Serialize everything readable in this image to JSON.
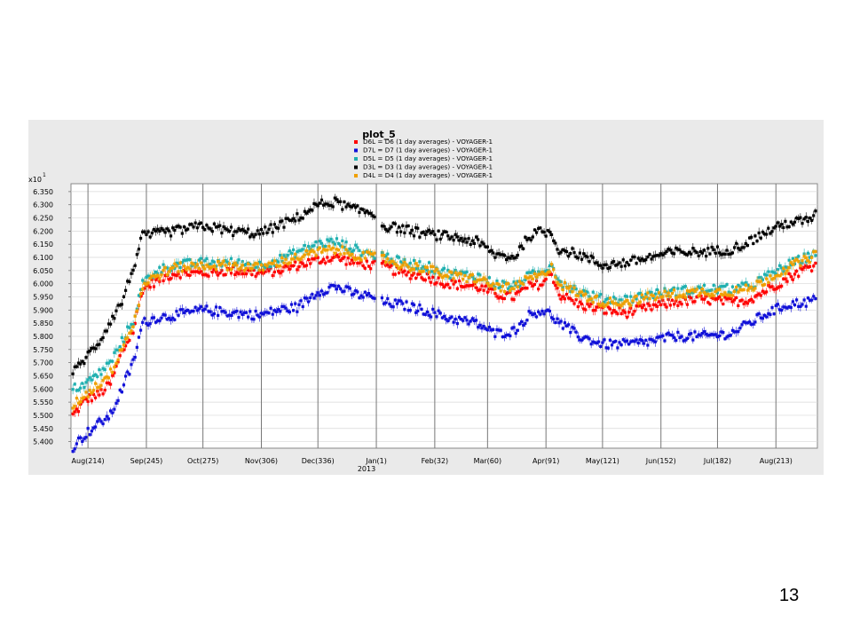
{
  "page_number": "13",
  "chart_data": {
    "type": "scatter",
    "title": "plot_5",
    "y_multiplier_label": "x10",
    "y_multiplier_exp": "1",
    "y_tick_labels": [
      "5.400",
      "5.450",
      "5.500",
      "5.550",
      "5.600",
      "5.650",
      "5.700",
      "5.750",
      "5.800",
      "5.850",
      "5.900",
      "5.950",
      "6.000",
      "6.050",
      "6.100",
      "6.150",
      "6.200",
      "6.250",
      "6.300",
      "6.350"
    ],
    "ylim": [
      5.375,
      6.38
    ],
    "xlim": [
      205,
      601
    ],
    "x_unit": "day of year (2012 continuing into 2013, day 366 = Jan 1 2013)",
    "x_ticks": [
      {
        "x": 214,
        "label": "Aug(214)"
      },
      {
        "x": 245,
        "label": "Sep(245)"
      },
      {
        "x": 275,
        "label": "Oct(275)"
      },
      {
        "x": 306,
        "label": "Nov(306)"
      },
      {
        "x": 336,
        "label": "Dec(336)"
      },
      {
        "x": 367,
        "label": "Jan(1)"
      },
      {
        "x": 398,
        "label": "Feb(32)"
      },
      {
        "x": 426,
        "label": "Mar(60)"
      },
      {
        "x": 457,
        "label": "Apr(91)"
      },
      {
        "x": 487,
        "label": "May(121)"
      },
      {
        "x": 518,
        "label": "Jun(152)"
      },
      {
        "x": 548,
        "label": "Jul(182)"
      },
      {
        "x": 579,
        "label": "Aug(213)"
      }
    ],
    "year_label": "2013",
    "grid": true,
    "legend_position": "top",
    "series": [
      {
        "name": "D6L = D6 (1 day averages) - VOYAGER-1",
        "color": "#ff0000",
        "knots": [
          [
            206,
            5.5
          ],
          [
            213,
            5.56
          ],
          [
            220,
            5.58
          ],
          [
            226,
            5.62
          ],
          [
            232,
            5.74
          ],
          [
            238,
            5.82
          ],
          [
            243,
            5.98
          ],
          [
            250,
            6.01
          ],
          [
            260,
            6.04
          ],
          [
            275,
            6.04
          ],
          [
            290,
            6.05
          ],
          [
            305,
            6.04
          ],
          [
            315,
            6.05
          ],
          [
            325,
            6.07
          ],
          [
            336,
            6.09
          ],
          [
            345,
            6.1
          ],
          [
            356,
            6.08
          ],
          [
            365,
            6.07
          ],
          [
            370,
            6.07
          ],
          [
            380,
            6.04
          ],
          [
            392,
            6.03
          ],
          [
            405,
            6.0
          ],
          [
            420,
            5.99
          ],
          [
            430,
            5.96
          ],
          [
            440,
            5.95
          ],
          [
            448,
            5.99
          ],
          [
            455,
            6.0
          ],
          [
            460,
            6.04
          ],
          [
            464,
            5.96
          ],
          [
            475,
            5.92
          ],
          [
            487,
            5.9
          ],
          [
            500,
            5.89
          ],
          [
            512,
            5.91
          ],
          [
            525,
            5.93
          ],
          [
            540,
            5.94
          ],
          [
            555,
            5.93
          ],
          [
            565,
            5.94
          ],
          [
            575,
            5.98
          ],
          [
            585,
            6.02
          ],
          [
            595,
            6.06
          ],
          [
            600,
            6.07
          ]
        ]
      },
      {
        "name": "D7L = D7 (1 day averages) - VOYAGER-1",
        "color": "#1010d8",
        "knots": [
          [
            206,
            5.38
          ],
          [
            213,
            5.43
          ],
          [
            220,
            5.47
          ],
          [
            226,
            5.5
          ],
          [
            232,
            5.6
          ],
          [
            238,
            5.7
          ],
          [
            243,
            5.85
          ],
          [
            250,
            5.87
          ],
          [
            260,
            5.88
          ],
          [
            275,
            5.9
          ],
          [
            290,
            5.89
          ],
          [
            305,
            5.88
          ],
          [
            315,
            5.9
          ],
          [
            325,
            5.91
          ],
          [
            336,
            5.97
          ],
          [
            345,
            5.99
          ],
          [
            356,
            5.96
          ],
          [
            365,
            5.95
          ],
          [
            370,
            5.93
          ],
          [
            380,
            5.92
          ],
          [
            392,
            5.9
          ],
          [
            405,
            5.87
          ],
          [
            420,
            5.85
          ],
          [
            430,
            5.81
          ],
          [
            440,
            5.82
          ],
          [
            448,
            5.88
          ],
          [
            455,
            5.9
          ],
          [
            460,
            5.88
          ],
          [
            464,
            5.85
          ],
          [
            475,
            5.8
          ],
          [
            487,
            5.77
          ],
          [
            500,
            5.77
          ],
          [
            512,
            5.78
          ],
          [
            525,
            5.8
          ],
          [
            540,
            5.8
          ],
          [
            555,
            5.81
          ],
          [
            565,
            5.85
          ],
          [
            575,
            5.89
          ],
          [
            585,
            5.92
          ],
          [
            595,
            5.93
          ],
          [
            600,
            5.94
          ]
        ]
      },
      {
        "name": "D5L = D5 (1 day averages) - VOYAGER-1",
        "color": "#20b0b0",
        "knots": [
          [
            206,
            5.6
          ],
          [
            213,
            5.62
          ],
          [
            220,
            5.66
          ],
          [
            226,
            5.7
          ],
          [
            232,
            5.78
          ],
          [
            238,
            5.86
          ],
          [
            243,
            6.0
          ],
          [
            250,
            6.05
          ],
          [
            260,
            6.07
          ],
          [
            275,
            6.08
          ],
          [
            290,
            6.08
          ],
          [
            305,
            6.07
          ],
          [
            315,
            6.09
          ],
          [
            325,
            6.12
          ],
          [
            336,
            6.15
          ],
          [
            345,
            6.16
          ],
          [
            356,
            6.13
          ],
          [
            365,
            6.11
          ],
          [
            370,
            6.11
          ],
          [
            380,
            6.08
          ],
          [
            392,
            6.07
          ],
          [
            405,
            6.04
          ],
          [
            420,
            6.03
          ],
          [
            430,
            6.0
          ],
          [
            440,
            5.99
          ],
          [
            448,
            6.03
          ],
          [
            455,
            6.04
          ],
          [
            460,
            6.08
          ],
          [
            464,
            6.01
          ],
          [
            475,
            5.97
          ],
          [
            487,
            5.94
          ],
          [
            500,
            5.94
          ],
          [
            512,
            5.96
          ],
          [
            525,
            5.97
          ],
          [
            540,
            5.98
          ],
          [
            555,
            5.98
          ],
          [
            565,
            5.99
          ],
          [
            575,
            6.03
          ],
          [
            585,
            6.07
          ],
          [
            595,
            6.1
          ],
          [
            600,
            6.12
          ]
        ]
      },
      {
        "name": "D3L = D3 (1 day averages) - VOYAGER-1",
        "color": "#000000",
        "knots": [
          [
            206,
            5.66
          ],
          [
            213,
            5.72
          ],
          [
            220,
            5.78
          ],
          [
            226,
            5.86
          ],
          [
            232,
            5.93
          ],
          [
            238,
            6.06
          ],
          [
            243,
            6.18
          ],
          [
            250,
            6.19
          ],
          [
            260,
            6.2
          ],
          [
            275,
            6.22
          ],
          [
            290,
            6.2
          ],
          [
            305,
            6.19
          ],
          [
            315,
            6.22
          ],
          [
            325,
            6.25
          ],
          [
            336,
            6.3
          ],
          [
            345,
            6.31
          ],
          [
            356,
            6.28
          ],
          [
            365,
            6.27
          ],
          [
            370,
            6.22
          ],
          [
            380,
            6.21
          ],
          [
            392,
            6.19
          ],
          [
            405,
            6.18
          ],
          [
            420,
            6.16
          ],
          [
            430,
            6.11
          ],
          [
            440,
            6.1
          ],
          [
            448,
            6.18
          ],
          [
            455,
            6.2
          ],
          [
            460,
            6.19
          ],
          [
            464,
            6.13
          ],
          [
            475,
            6.11
          ],
          [
            487,
            6.07
          ],
          [
            500,
            6.08
          ],
          [
            512,
            6.1
          ],
          [
            525,
            6.12
          ],
          [
            540,
            6.12
          ],
          [
            555,
            6.13
          ],
          [
            565,
            6.16
          ],
          [
            575,
            6.2
          ],
          [
            585,
            6.23
          ],
          [
            595,
            6.24
          ],
          [
            600,
            6.26
          ]
        ]
      },
      {
        "name": "D4L = D4 (1 day averages) - VOYAGER-1",
        "color": "#f0a000",
        "knots": [
          [
            206,
            5.54
          ],
          [
            213,
            5.58
          ],
          [
            220,
            5.62
          ],
          [
            226,
            5.66
          ],
          [
            232,
            5.76
          ],
          [
            238,
            5.84
          ],
          [
            243,
            5.99
          ],
          [
            250,
            6.03
          ],
          [
            260,
            6.06
          ],
          [
            275,
            6.07
          ],
          [
            290,
            6.07
          ],
          [
            305,
            6.06
          ],
          [
            315,
            6.08
          ],
          [
            325,
            6.1
          ],
          [
            336,
            6.12
          ],
          [
            345,
            6.13
          ],
          [
            356,
            6.11
          ],
          [
            365,
            6.1
          ],
          [
            370,
            6.1
          ],
          [
            380,
            6.07
          ],
          [
            392,
            6.06
          ],
          [
            405,
            6.03
          ],
          [
            420,
            6.02
          ],
          [
            430,
            5.99
          ],
          [
            440,
            5.98
          ],
          [
            448,
            6.02
          ],
          [
            455,
            6.03
          ],
          [
            460,
            6.07
          ],
          [
            464,
            6.0
          ],
          [
            475,
            5.96
          ],
          [
            487,
            5.93
          ],
          [
            500,
            5.93
          ],
          [
            512,
            5.95
          ],
          [
            525,
            5.96
          ],
          [
            540,
            5.97
          ],
          [
            555,
            5.97
          ],
          [
            565,
            5.98
          ],
          [
            575,
            6.02
          ],
          [
            585,
            6.06
          ],
          [
            595,
            6.09
          ],
          [
            600,
            6.11
          ]
        ]
      }
    ],
    "data_gap": [
      367,
      369
    ]
  }
}
